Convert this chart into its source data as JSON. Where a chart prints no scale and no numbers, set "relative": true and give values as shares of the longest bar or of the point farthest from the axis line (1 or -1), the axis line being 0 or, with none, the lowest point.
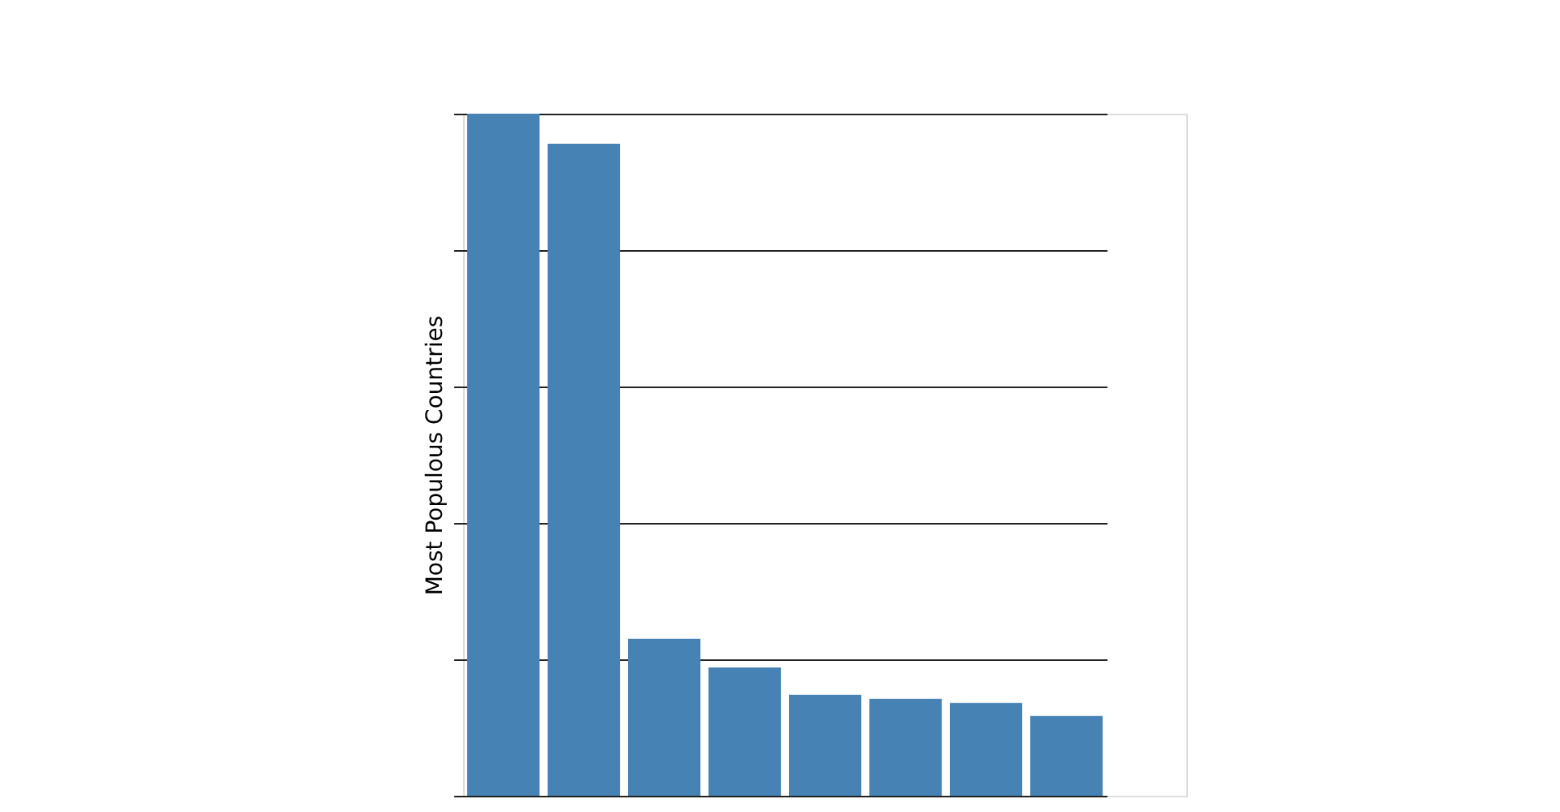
{
  "chart_data": {
    "type": "bar",
    "ylabel": "Most Populous Countries",
    "categories": [
      null,
      null,
      null,
      null,
      null,
      null,
      null,
      null
    ],
    "values": [
      1,
      0.956,
      0.23,
      0.188,
      0.148,
      0.142,
      0.136,
      0.117
    ],
    "color": "#4682b4",
    "relative": true,
    "grid": "y"
  }
}
